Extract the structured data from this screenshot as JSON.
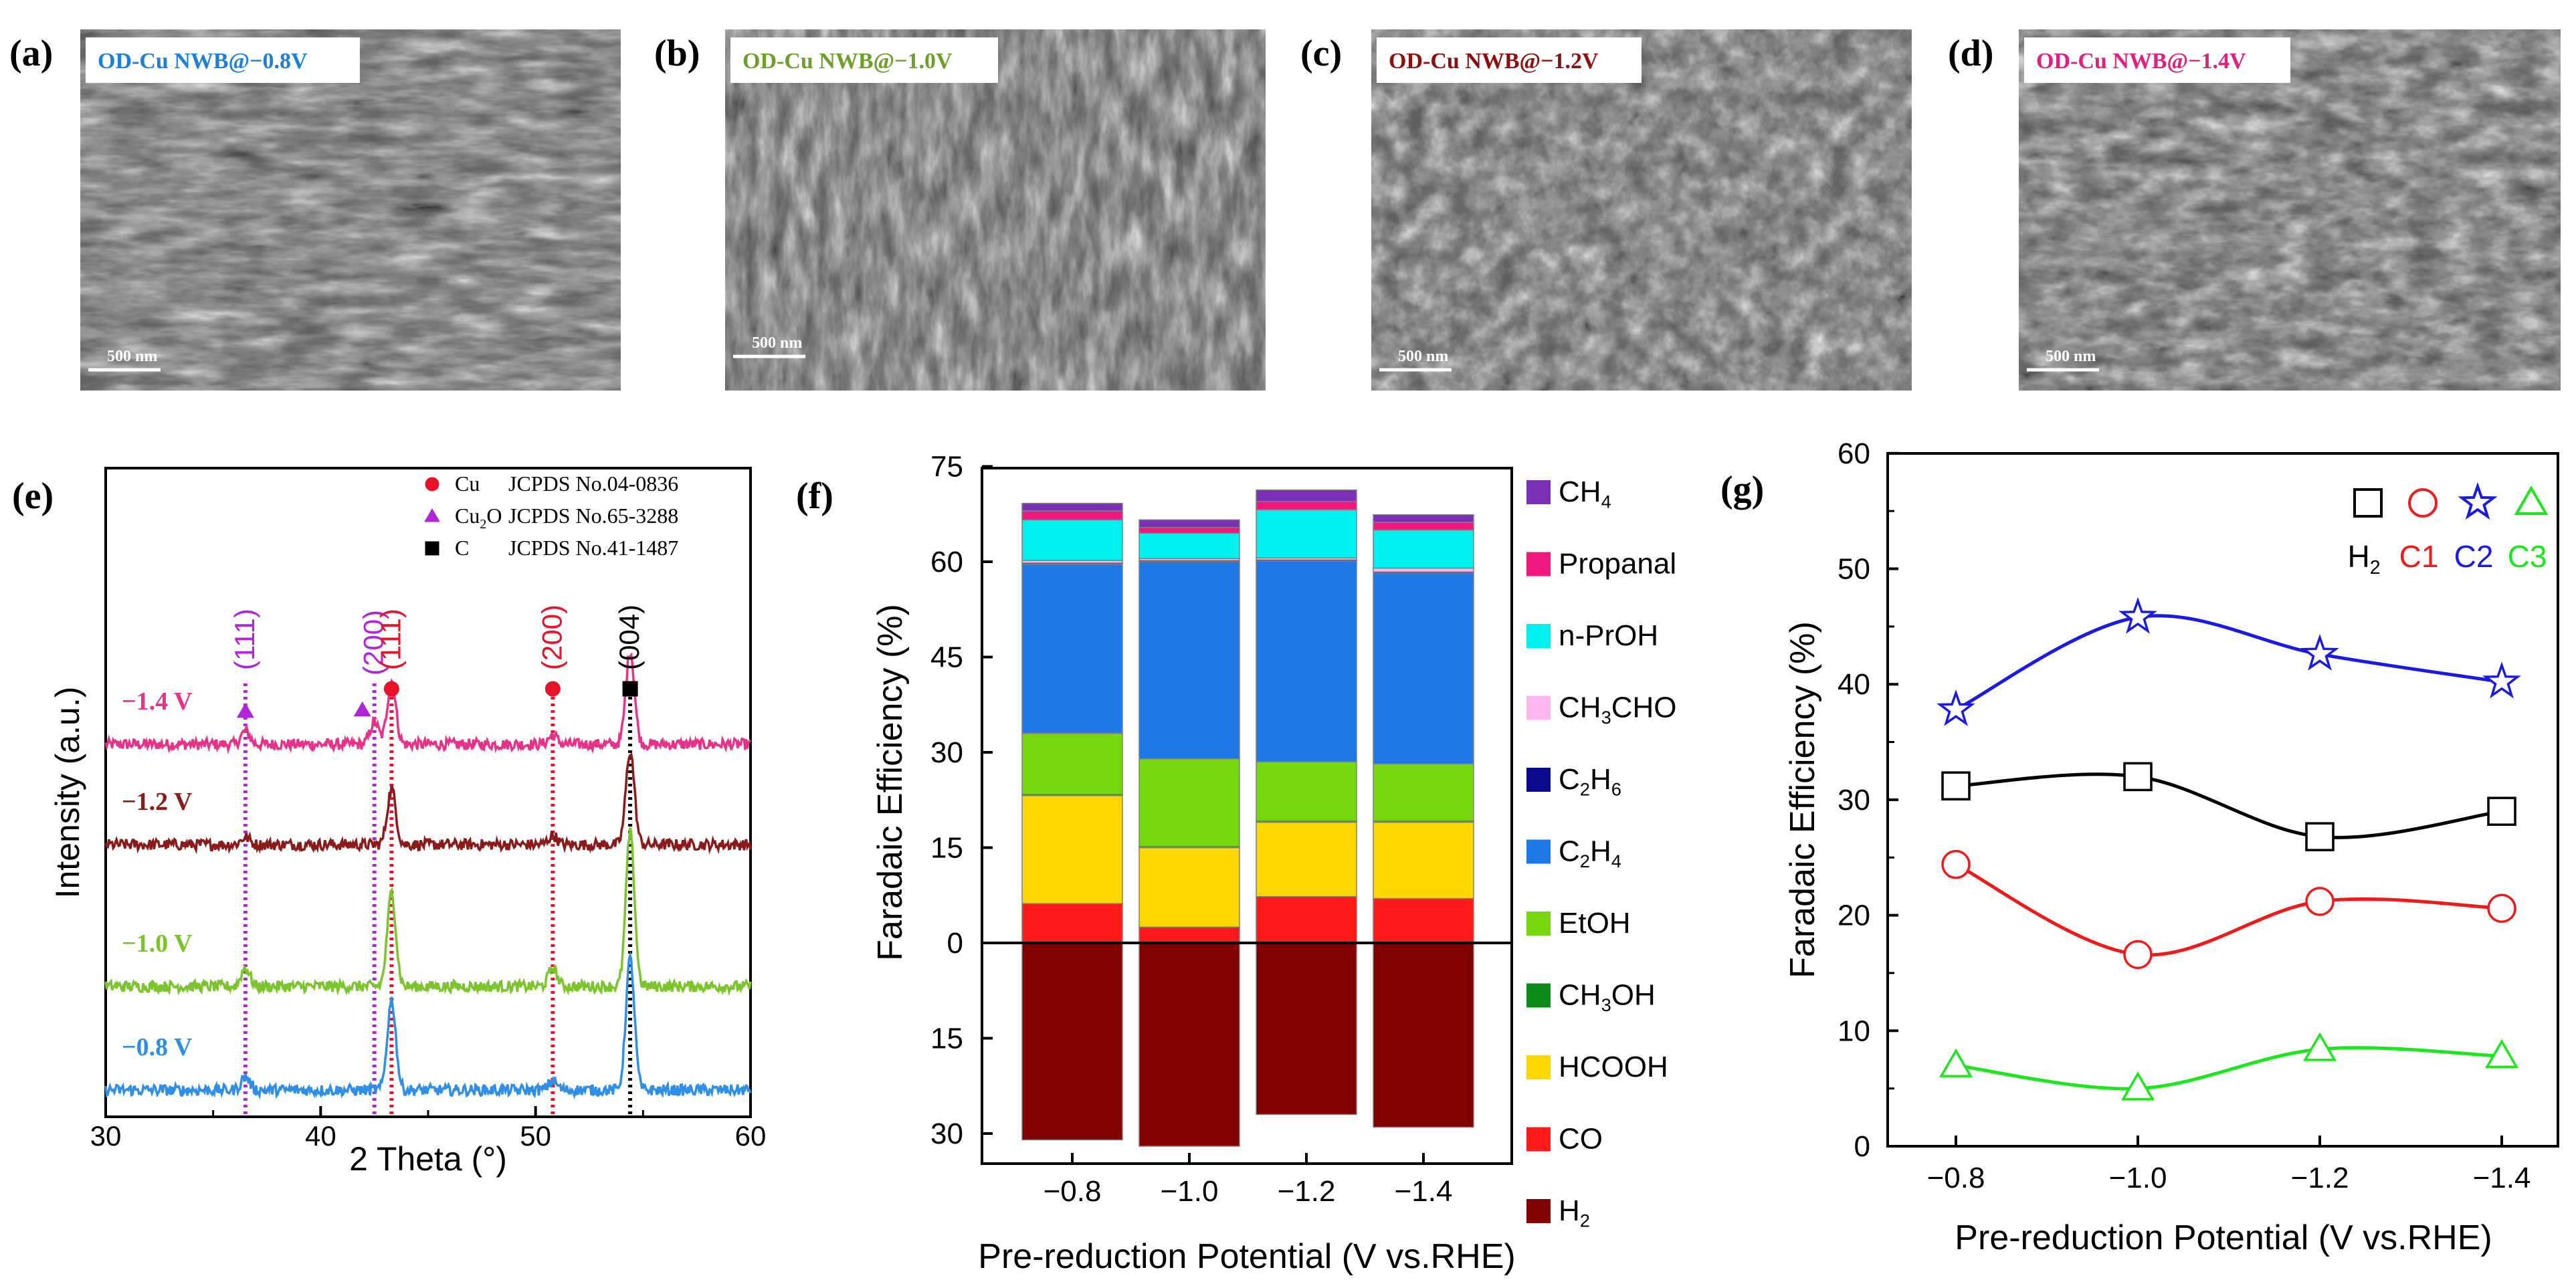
{
  "figure": {
    "sem_panels": [
      {
        "letter": "(a)",
        "caption": "OD-Cu NWB@−0.8V",
        "color": "#1e7fd8",
        "scale": "500 nm"
      },
      {
        "letter": "(b)",
        "caption": "OD-Cu NWB@−1.0V",
        "color": "#6e9f2b",
        "scale": "500 nm"
      },
      {
        "letter": "(c)",
        "caption": "OD-Cu NWB@−1.2V",
        "color": "#8b1010",
        "scale": "500 nm"
      },
      {
        "letter": "(d)",
        "caption": "OD-Cu NWB@−1.4V",
        "color": "#e0207d",
        "scale": "500 nm"
      }
    ]
  },
  "chart_data": [
    {
      "id": "e",
      "type": "line",
      "letter": "(e)",
      "xlabel": "2 Theta (°)",
      "ylabel": "Intensity (a.u.)",
      "xlim": [
        30,
        60
      ],
      "xticks": [
        "30",
        "40",
        "50",
        "60"
      ],
      "legend": [
        {
          "marker": "circle",
          "color": "#e8132a",
          "label": "Cu",
          "ref": "JCPDS No.04-0836"
        },
        {
          "marker": "triangle",
          "color": "#b026d6",
          "label": "Cu2O",
          "ref": "JCPDS No.65-3288"
        },
        {
          "marker": "square",
          "color": "#000000",
          "label": "C",
          "ref": "JCPDS No.41-1487"
        }
      ],
      "reference_lines": [
        {
          "x": 36.5,
          "color": "#b026d6"
        },
        {
          "x": 42.5,
          "color": "#b026d6"
        },
        {
          "x": 43.3,
          "color": "#e8132a"
        },
        {
          "x": 50.8,
          "color": "#e8132a"
        },
        {
          "x": 54.4,
          "color": "#000000"
        }
      ],
      "peak_labels": [
        {
          "x": 36.5,
          "text": "(111)",
          "color": "#b026d6",
          "marker": "triangle"
        },
        {
          "x": 42.5,
          "text": "(200)",
          "color": "#b026d6",
          "marker": "triangle"
        },
        {
          "x": 43.3,
          "text": "(111)",
          "color": "#e8132a",
          "marker": "circle"
        },
        {
          "x": 50.8,
          "text": "(200)",
          "color": "#e8132a",
          "marker": "circle"
        },
        {
          "x": 54.4,
          "text": "(004)",
          "color": "#000000",
          "marker": "square"
        }
      ],
      "series": [
        {
          "name": "−1.4 V",
          "color": "#e8328a",
          "offset": 3,
          "peaks": [
            [
              36.5,
              0.07
            ],
            [
              42.5,
              0.12
            ],
            [
              43.3,
              0.34
            ],
            [
              50.8,
              0.05
            ],
            [
              54.4,
              0.5
            ]
          ]
        },
        {
          "name": "−1.2 V",
          "color": "#8b1a1a",
          "offset": 2,
          "peaks": [
            [
              36.5,
              0.04
            ],
            [
              43.3,
              0.3
            ],
            [
              50.8,
              0.05
            ],
            [
              54.4,
              0.5
            ]
          ]
        },
        {
          "name": "−1.0 V",
          "color": "#7cc42b",
          "offset": 1,
          "peaks": [
            [
              36.5,
              0.1
            ],
            [
              43.3,
              0.5
            ],
            [
              50.8,
              0.1
            ],
            [
              54.4,
              0.82
            ]
          ]
        },
        {
          "name": "−0.8 V",
          "color": "#2f8fe6",
          "offset": 0,
          "peaks": [
            [
              36.5,
              0.07
            ],
            [
              43.3,
              0.48
            ],
            [
              50.8,
              0.05
            ],
            [
              54.4,
              0.7
            ]
          ]
        }
      ]
    },
    {
      "id": "f",
      "type": "bar",
      "letter": "(f)",
      "xlabel": "Pre-reduction Potential (V vs.RHE)",
      "ylabel": "Faradaic Efficiency (%)",
      "categories": [
        "−0.8",
        "−1.0",
        "−1.2",
        "−1.4"
      ],
      "ylim_top": [
        0,
        75
      ],
      "ylim_bottom": [
        0,
        30
      ],
      "yticks_top": [
        "0",
        "15",
        "30",
        "45",
        "60",
        "75"
      ],
      "yticks_bottom": [
        "15",
        "30"
      ],
      "series": [
        {
          "name": "CO",
          "label": "CO",
          "color": "#ff1a1a",
          "values": [
            6.2,
            2.5,
            7.3,
            7.0
          ]
        },
        {
          "name": "HCOOH",
          "label": "HCOOH",
          "color": "#ffd700",
          "values": [
            17.0,
            12.5,
            11.7,
            12.0
          ]
        },
        {
          "name": "CH3OH",
          "label": "CH3OH",
          "sub": "3",
          "base": "CH",
          "tail": "OH",
          "color": "#0c8a1a",
          "values": [
            0.2,
            0.2,
            0.2,
            0.2
          ]
        },
        {
          "name": "EtOH",
          "label": "EtOH",
          "color": "#76d70f",
          "values": [
            9.6,
            13.8,
            9.3,
            9.0
          ]
        },
        {
          "name": "C2H4",
          "label": "C2H4",
          "base": "C",
          "sub": "2",
          "tail": "H",
          "sub2": "4",
          "color": "#1e78e6",
          "values": [
            26.6,
            31.0,
            31.6,
            30.0
          ]
        },
        {
          "name": "C2H6",
          "label": "C2H6",
          "base": "C",
          "sub": "2",
          "tail": "H",
          "sub2": "6",
          "color": "#0a0a8c",
          "values": [
            0.2,
            0.2,
            0.2,
            0.2
          ]
        },
        {
          "name": "CH3CHO",
          "label": "CH3CHO",
          "base": "CH",
          "sub": "3",
          "tail": "CHO",
          "color": "#ffb8ef",
          "values": [
            0.4,
            0.3,
            0.3,
            0.6
          ]
        },
        {
          "name": "n-PrOH",
          "label": "n-PrOH",
          "color": "#00f0f0",
          "values": [
            6.4,
            4.0,
            7.6,
            6.0
          ]
        },
        {
          "name": "Propanal",
          "label": "Propanal",
          "color": "#f0177f",
          "values": [
            1.4,
            0.9,
            1.3,
            1.2
          ]
        },
        {
          "name": "CH4",
          "label": "CH4",
          "base": "CH",
          "sub": "4",
          "tail": "",
          "color": "#7a2fb5",
          "values": [
            1.2,
            1.2,
            1.8,
            1.2
          ]
        }
      ],
      "negative_series": {
        "name": "H2",
        "label": "H2",
        "base": "H",
        "sub": "2",
        "tail": "",
        "color": "#800000",
        "values": [
          31.0,
          32.0,
          27.0,
          29.0
        ]
      }
    },
    {
      "id": "g",
      "type": "line",
      "letter": "(g)",
      "xlabel": "Pre-reduction Potential (V vs.RHE)",
      "ylabel": "Faradaic Efficiency (%)",
      "categories": [
        "−0.8",
        "−1.0",
        "−1.2",
        "−1.4"
      ],
      "ylim": [
        0,
        60
      ],
      "yticks": [
        "0",
        "10",
        "20",
        "30",
        "40",
        "50",
        "60"
      ],
      "legend_position": "top-right",
      "series": [
        {
          "name": "H2",
          "base": "H",
          "sub": "2",
          "marker": "square",
          "color": "#000000",
          "values": [
            31.2,
            32.0,
            26.8,
            29.0
          ]
        },
        {
          "name": "C1",
          "marker": "circle",
          "color": "#f01a1a",
          "values": [
            24.4,
            16.6,
            21.2,
            20.6
          ]
        },
        {
          "name": "C2",
          "marker": "star",
          "color": "#1a1ae6",
          "values": [
            37.8,
            45.8,
            42.6,
            40.2
          ]
        },
        {
          "name": "C3",
          "marker": "triangle",
          "color": "#1ee61e",
          "values": [
            7.0,
            5.0,
            8.4,
            7.8
          ]
        }
      ]
    }
  ]
}
